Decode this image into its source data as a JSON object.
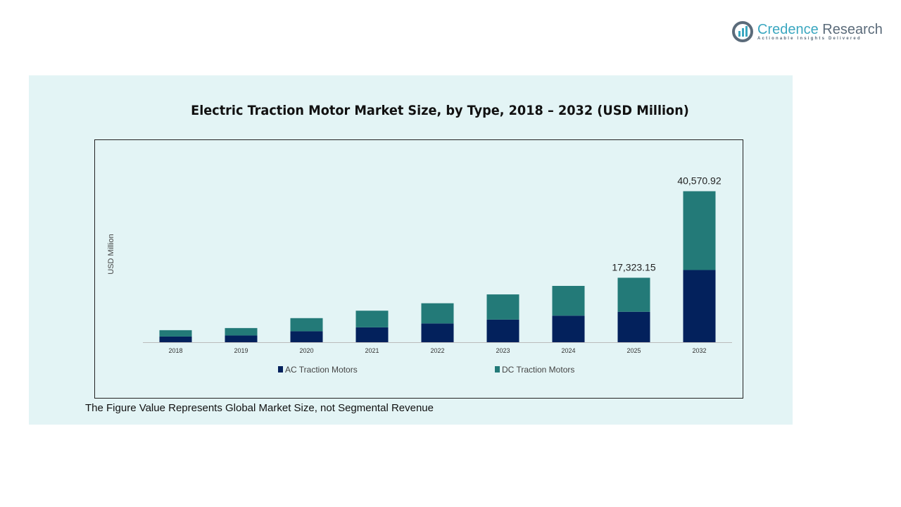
{
  "brand": {
    "name_part1": "Credence",
    "name_part2": "Research",
    "tagline": "Actionable Insights Delivered"
  },
  "note": "The Figure Value Represents Global Market Size, not Segmental Revenue",
  "chart_data": {
    "type": "bar",
    "stacked": true,
    "title": "Electric Traction Motor Market Size, by Type, 2018 – 2032 (USD Million)",
    "xlabel": "",
    "ylabel": "USD Million",
    "categories": [
      "2018",
      "2019",
      "2020",
      "2021",
      "2022",
      "2023",
      "2024",
      "2025",
      "2032"
    ],
    "series": [
      {
        "name": "AC Traction Motors",
        "color": "#03215c",
        "values": [
          1523,
          1808,
          2951,
          3998,
          5045,
          6092,
          7139,
          8186,
          19395
        ]
      },
      {
        "name": "DC Traction Motors",
        "color": "#237a78",
        "values": [
          1713,
          1999,
          3521,
          4473,
          5425,
          6757,
          7995,
          9137,
          21176
        ]
      }
    ],
    "data_labels": {
      "2025": "17,323.15",
      "2032": "40,570.92"
    },
    "ylim": [
      0,
      42000
    ],
    "grid": false,
    "legend": "bottom"
  }
}
